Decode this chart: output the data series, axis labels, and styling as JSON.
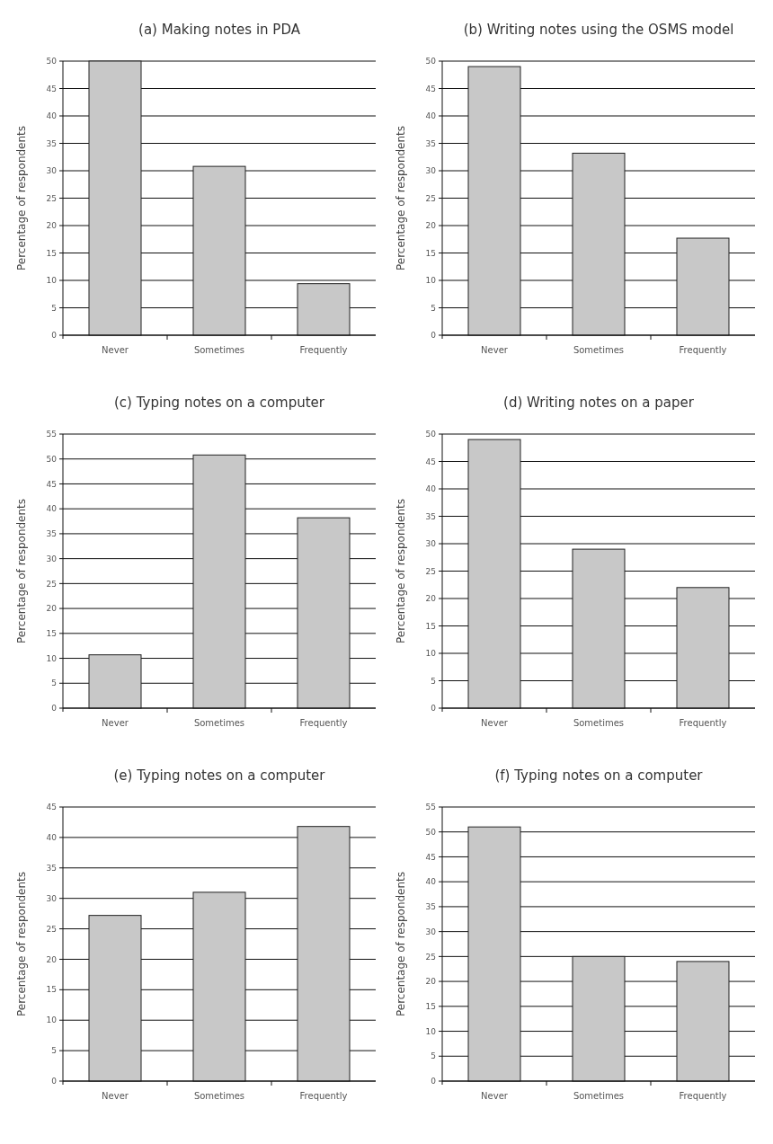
{
  "chart_data": [
    {
      "type": "bar",
      "title": "(a) Making notes in PDA",
      "ylabel": "Percentage of respondents",
      "categories": [
        "Never",
        "Sometimes",
        "Frequently"
      ],
      "values": [
        50,
        30.8,
        9.4
      ],
      "color": "#c8c8c8",
      "ylim": [
        0,
        50
      ],
      "yticks": [
        0,
        5,
        10,
        15,
        20,
        25,
        30,
        35,
        40,
        45,
        50
      ],
      "grid": "y"
    },
    {
      "type": "bar",
      "title": "(b) Writing notes using the OSMS model",
      "ylabel": "Percentage of respondents",
      "categories": [
        "Never",
        "Sometimes",
        "Frequently"
      ],
      "values": [
        49,
        33.2,
        17.7
      ],
      "color": "#c8c8c8",
      "ylim": [
        0,
        50
      ],
      "yticks": [
        0,
        5,
        10,
        15,
        20,
        25,
        30,
        35,
        40,
        45,
        50
      ],
      "grid": "y"
    },
    {
      "type": "bar",
      "title": "(c) Typing notes on a computer",
      "ylabel": "Percentage of respondents",
      "categories": [
        "Never",
        "Sometimes",
        "Frequently"
      ],
      "values": [
        10.7,
        50.8,
        38.2
      ],
      "color": "#c8c8c8",
      "ylim": [
        0,
        55
      ],
      "yticks": [
        0,
        5,
        10,
        15,
        20,
        25,
        30,
        35,
        40,
        45,
        50,
        55
      ],
      "grid": "y"
    },
    {
      "type": "bar",
      "title": "(d) Writing notes on a paper",
      "ylabel": "Percentage of respondents",
      "categories": [
        "Never",
        "Sometimes",
        "Frequently"
      ],
      "values": [
        49,
        29,
        22
      ],
      "color": "#c8c8c8",
      "ylim": [
        0,
        50
      ],
      "yticks": [
        0,
        5,
        10,
        15,
        20,
        25,
        30,
        35,
        40,
        45,
        50
      ],
      "grid": "y"
    },
    {
      "type": "bar",
      "title": "(e) Typing notes on a computer",
      "ylabel": "Percentage of respondents",
      "categories": [
        "Never",
        "Sometimes",
        "Frequently"
      ],
      "values": [
        27.2,
        31,
        41.8
      ],
      "color": "#c8c8c8",
      "ylim": [
        0,
        45
      ],
      "yticks": [
        0,
        5,
        10,
        15,
        20,
        25,
        30,
        35,
        40,
        45
      ],
      "grid": "y"
    },
    {
      "type": "bar",
      "title": "(f) Typing notes on a computer",
      "ylabel": "Percentage of respondents",
      "categories": [
        "Never",
        "Sometimes",
        "Frequently"
      ],
      "values": [
        51,
        25,
        24
      ],
      "color": "#c8c8c8",
      "ylim": [
        0,
        55
      ],
      "yticks": [
        0,
        5,
        10,
        15,
        20,
        25,
        30,
        35,
        40,
        45,
        50,
        55
      ],
      "grid": "y"
    }
  ]
}
